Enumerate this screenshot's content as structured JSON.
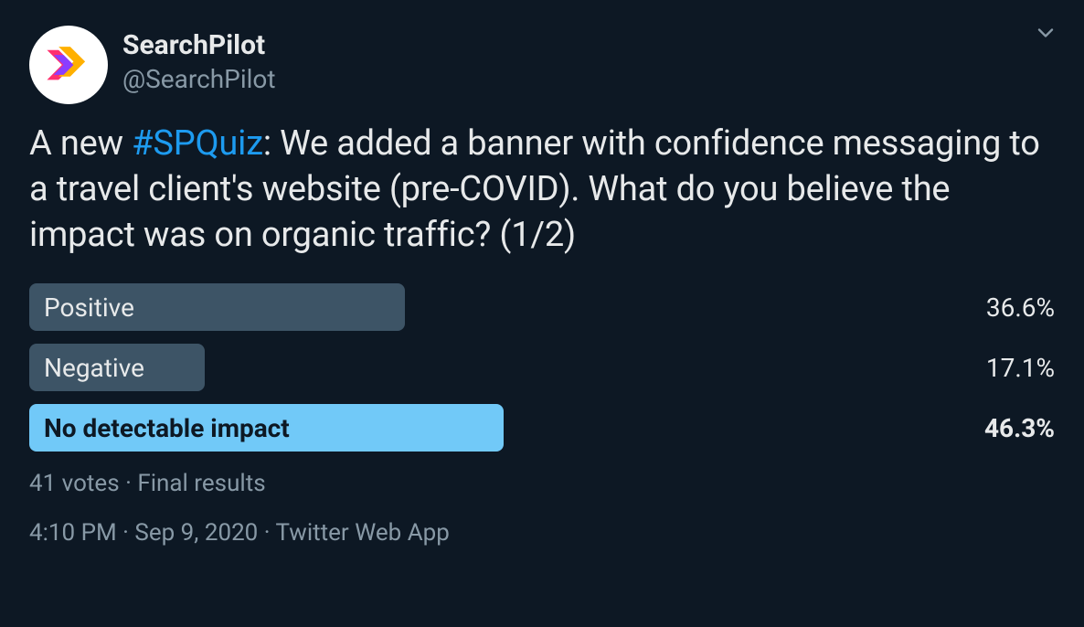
{
  "colors": {
    "background": "#0d1824",
    "text_primary": "#e7e9ea",
    "text_secondary": "#8899a6",
    "link": "#1d9bf0",
    "bar_normal": "#3d5466",
    "bar_winner": "#71c9f8",
    "winner_label_text": "#0d1824",
    "avatar_bg": "#ffffff"
  },
  "avatar": {
    "bg": "#ffffff",
    "logo_colors": {
      "pink": "#ff2f6e",
      "orange": "#ffb000",
      "purple": "#8b3dff"
    }
  },
  "account": {
    "display_name": "SearchPilot",
    "handle": "@SearchPilot"
  },
  "tweet": {
    "prefix": "A new ",
    "hashtag": "#SPQuiz",
    "suffix": ": We added a banner with confidence messaging to a travel client's website (pre-COVID). What do you believe the impact was on organic traffic? (1/2)"
  },
  "poll": {
    "options": [
      {
        "label": "Positive",
        "pct_text": "36.6%",
        "pct_value": 36.6,
        "is_winner": false
      },
      {
        "label": "Negative",
        "pct_text": "17.1%",
        "pct_value": 17.1,
        "is_winner": false
      },
      {
        "label": "No detectable impact",
        "pct_text": "46.3%",
        "pct_value": 46.3,
        "is_winner": true
      }
    ],
    "votes_text": "41 votes",
    "status_text": "Final results",
    "meta_separator": " · "
  },
  "meta": {
    "time": "4:10 PM",
    "date": "Sep 9, 2020",
    "source": "Twitter Web App",
    "separator": " · "
  }
}
